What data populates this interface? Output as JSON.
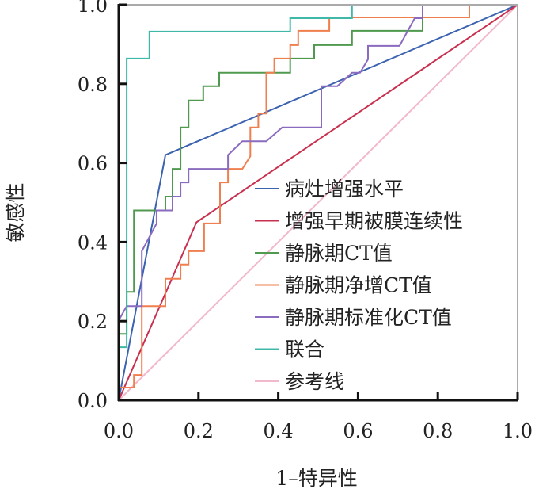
{
  "chart_data": {
    "type": "line",
    "title": "",
    "xlabel": "1–特异性",
    "ylabel": "敏感性",
    "xlim": [
      0,
      1
    ],
    "ylim": [
      0,
      1
    ],
    "xticks": [
      "0.0",
      "0.2",
      "0.4",
      "0.6",
      "0.8",
      "1.0"
    ],
    "yticks": [
      "0.0",
      "0.2",
      "0.4",
      "0.6",
      "0.8",
      "1.0"
    ],
    "grid": false,
    "legend_position": "center-right",
    "series": [
      {
        "name": "病灶增强水平",
        "color": "#3b63b0",
        "points": [
          [
            0,
            0
          ],
          [
            0.117,
            0.62
          ],
          [
            1,
            1
          ]
        ]
      },
      {
        "name": "增强早期被膜连续性",
        "color": "#c9304f",
        "points": [
          [
            0,
            0
          ],
          [
            0.195,
            0.45
          ],
          [
            1,
            1
          ]
        ]
      },
      {
        "name": "静脉期CT值",
        "color": "#4f9a4f",
        "points": [
          [
            0,
            0
          ],
          [
            0,
            0.168
          ],
          [
            0.02,
            0.168
          ],
          [
            0.02,
            0.274
          ],
          [
            0.038,
            0.274
          ],
          [
            0.038,
            0.48
          ],
          [
            0.117,
            0.48
          ],
          [
            0.117,
            0.515
          ],
          [
            0.135,
            0.515
          ],
          [
            0.135,
            0.585
          ],
          [
            0.155,
            0.585
          ],
          [
            0.155,
            0.69
          ],
          [
            0.175,
            0.69
          ],
          [
            0.175,
            0.758
          ],
          [
            0.212,
            0.758
          ],
          [
            0.212,
            0.794
          ],
          [
            0.252,
            0.794
          ],
          [
            0.252,
            0.828
          ],
          [
            0.43,
            0.828
          ],
          [
            0.43,
            0.864
          ],
          [
            0.49,
            0.864
          ],
          [
            0.49,
            0.898
          ],
          [
            0.585,
            0.898
          ],
          [
            0.585,
            0.934
          ],
          [
            0.762,
            0.934
          ],
          [
            0.762,
            1
          ],
          [
            1,
            1
          ]
        ]
      },
      {
        "name": "静脉期净增CT值",
        "color": "#f07f4f",
        "points": [
          [
            0,
            0
          ],
          [
            0,
            0.032
          ],
          [
            0.038,
            0.032
          ],
          [
            0.038,
            0.064
          ],
          [
            0.058,
            0.064
          ],
          [
            0.058,
            0.238
          ],
          [
            0.117,
            0.238
          ],
          [
            0.117,
            0.307
          ],
          [
            0.155,
            0.307
          ],
          [
            0.155,
            0.343
          ],
          [
            0.175,
            0.343
          ],
          [
            0.175,
            0.377
          ],
          [
            0.214,
            0.377
          ],
          [
            0.214,
            0.447
          ],
          [
            0.254,
            0.447
          ],
          [
            0.254,
            0.551
          ],
          [
            0.274,
            0.551
          ],
          [
            0.274,
            0.585
          ],
          [
            0.31,
            0.585
          ],
          [
            0.33,
            0.617
          ],
          [
            0.33,
            0.69
          ],
          [
            0.35,
            0.69
          ],
          [
            0.35,
            0.725
          ],
          [
            0.37,
            0.725
          ],
          [
            0.37,
            0.828
          ],
          [
            0.39,
            0.828
          ],
          [
            0.39,
            0.864
          ],
          [
            0.43,
            0.864
          ],
          [
            0.43,
            0.898
          ],
          [
            0.45,
            0.898
          ],
          [
            0.45,
            0.934
          ],
          [
            0.528,
            0.934
          ],
          [
            0.528,
            0.968
          ],
          [
            0.879,
            0.968
          ],
          [
            0.879,
            1
          ],
          [
            1,
            1
          ]
        ]
      },
      {
        "name": "静脉期标准化CT值",
        "color": "#8a6bbf",
        "points": [
          [
            0,
            0
          ],
          [
            0,
            0.202
          ],
          [
            0.02,
            0.238
          ],
          [
            0.058,
            0.238
          ],
          [
            0.058,
            0.377
          ],
          [
            0.095,
            0.447
          ],
          [
            0.095,
            0.48
          ],
          [
            0.135,
            0.48
          ],
          [
            0.135,
            0.515
          ],
          [
            0.155,
            0.515
          ],
          [
            0.155,
            0.551
          ],
          [
            0.175,
            0.551
          ],
          [
            0.175,
            0.585
          ],
          [
            0.274,
            0.585
          ],
          [
            0.274,
            0.62
          ],
          [
            0.31,
            0.655
          ],
          [
            0.37,
            0.655
          ],
          [
            0.41,
            0.69
          ],
          [
            0.49,
            0.69
          ],
          [
            0.508,
            0.69
          ],
          [
            0.508,
            0.794
          ],
          [
            0.548,
            0.794
          ],
          [
            0.585,
            0.828
          ],
          [
            0.605,
            0.828
          ],
          [
            0.625,
            0.862
          ],
          [
            0.625,
            0.896
          ],
          [
            0.704,
            0.896
          ],
          [
            0.742,
            0.966
          ],
          [
            0.762,
            0.966
          ],
          [
            0.762,
            1
          ],
          [
            1,
            1
          ]
        ]
      },
      {
        "name": "联合",
        "color": "#3fb8a8",
        "points": [
          [
            0,
            0
          ],
          [
            0,
            0.134
          ],
          [
            0.02,
            0.134
          ],
          [
            0.02,
            0.864
          ],
          [
            0.077,
            0.864
          ],
          [
            0.077,
            0.932
          ],
          [
            0.43,
            0.932
          ],
          [
            0.43,
            0.966
          ],
          [
            0.585,
            0.966
          ],
          [
            0.585,
            1
          ],
          [
            1,
            1
          ]
        ]
      },
      {
        "name": "参考线",
        "color": "#f2b8cc",
        "points": [
          [
            0,
            0
          ],
          [
            1,
            1
          ]
        ]
      }
    ]
  }
}
